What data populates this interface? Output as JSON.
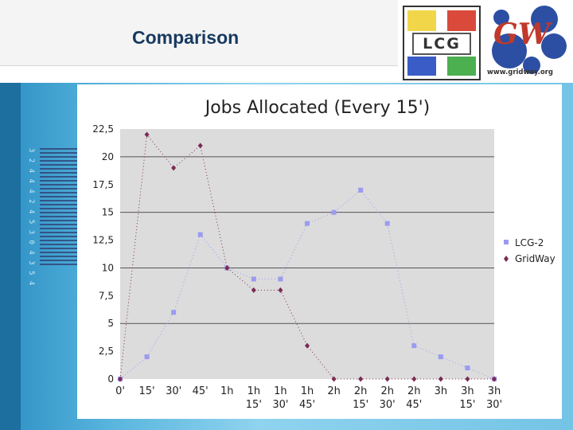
{
  "slide": {
    "title": "Comparison",
    "logo_lcg_text": "LCG",
    "logo_gw_text": "GW",
    "logo_gw_url": "www.gridway.org",
    "side_digits": "3 2 4 4 4 2 4 5 3 0 4 3 5 4"
  },
  "chart_data": {
    "type": "scatter",
    "title": "Jobs Allocated (Every 15')",
    "xlabel": "",
    "ylabel": "",
    "categories": [
      "0'",
      "15'",
      "30'",
      "45'",
      "1h",
      "1h\n15'",
      "1h\n30'",
      "1h\n45'",
      "2h",
      "2h\n15'",
      "2h\n30'",
      "2h\n45'",
      "3h",
      "3h\n15'",
      "3h\n30'"
    ],
    "ylim": [
      0,
      22.5
    ],
    "yticks": [
      "0",
      "2,5",
      "5",
      "7,5",
      "10",
      "12,5",
      "15",
      "17,5",
      "20",
      "22,5"
    ],
    "grid": "horizontal",
    "legend_position": "right",
    "series": [
      {
        "name": "LCG-2",
        "color": "#9b9bf0",
        "marker": "square",
        "values": [
          0,
          2,
          6,
          13,
          10,
          9,
          9,
          14,
          15,
          17,
          14,
          3,
          2,
          1,
          0
        ]
      },
      {
        "name": "GridWay",
        "color": "#7b2a52",
        "marker": "diamond",
        "values": [
          0,
          22,
          19,
          21,
          10,
          8,
          8,
          3,
          0,
          0,
          0,
          0,
          0,
          0,
          0
        ]
      }
    ]
  }
}
